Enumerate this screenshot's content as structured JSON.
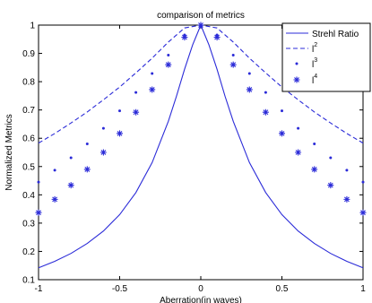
{
  "chart_data": {
    "type": "line",
    "title": "comparison of metrics",
    "xlabel": "Aberration(in waves)",
    "ylabel": "Normalized Metrics",
    "xlim": [
      -1,
      1
    ],
    "ylim": [
      0.1,
      1
    ],
    "xticks": [
      {
        "value": -1,
        "label": "-1"
      },
      {
        "value": -0.5,
        "label": "-0.5"
      },
      {
        "value": 0,
        "label": "0"
      },
      {
        "value": 0.5,
        "label": "0.5"
      },
      {
        "value": 1,
        "label": "1"
      }
    ],
    "yticks": [
      {
        "value": 0.1,
        "label": "0.1"
      },
      {
        "value": 0.2,
        "label": "0.2"
      },
      {
        "value": 0.3,
        "label": "0.3"
      },
      {
        "value": 0.4,
        "label": "0.4"
      },
      {
        "value": 0.5,
        "label": "0.5"
      },
      {
        "value": 0.6,
        "label": "0.6"
      },
      {
        "value": 0.7,
        "label": "0.7"
      },
      {
        "value": 0.8,
        "label": "0.8"
      },
      {
        "value": 0.9,
        "label": "0.9"
      },
      {
        "value": 1,
        "label": "1"
      }
    ],
    "grid": false,
    "legend_position": "top-right",
    "color": "#2b2bd8",
    "series": [
      {
        "name": "Strehl Ratio",
        "style": "solid-line",
        "x": [
          -1,
          -0.9,
          -0.8,
          -0.7,
          -0.6,
          -0.5,
          -0.4,
          -0.3,
          -0.2,
          -0.15,
          -0.1,
          -0.05,
          0,
          0.05,
          0.1,
          0.15,
          0.2,
          0.3,
          0.4,
          0.5,
          0.6,
          0.7,
          0.8,
          0.9,
          1
        ],
        "y": [
          0.142,
          0.165,
          0.193,
          0.228,
          0.272,
          0.33,
          0.408,
          0.514,
          0.66,
          0.748,
          0.844,
          0.93,
          1,
          0.93,
          0.844,
          0.748,
          0.66,
          0.514,
          0.408,
          0.33,
          0.272,
          0.228,
          0.193,
          0.165,
          0.142
        ]
      },
      {
        "name": "l2",
        "label_base": "l",
        "label_exponent": "2",
        "style": "dashed-line",
        "x": [
          -1,
          -0.9,
          -0.8,
          -0.7,
          -0.6,
          -0.5,
          -0.4,
          -0.3,
          -0.2,
          -0.1,
          0,
          0.1,
          0.2,
          0.3,
          0.4,
          0.5,
          0.6,
          0.7,
          0.8,
          0.9,
          1
        ],
        "y": [
          0.583,
          0.617,
          0.654,
          0.693,
          0.736,
          0.781,
          0.831,
          0.883,
          0.94,
          0.99,
          1,
          0.99,
          0.94,
          0.883,
          0.831,
          0.781,
          0.736,
          0.693,
          0.654,
          0.617,
          0.583
        ]
      },
      {
        "name": "l3",
        "label_base": "l",
        "label_exponent": "3",
        "style": "dot-markers",
        "x": [
          -1,
          -0.9,
          -0.8,
          -0.7,
          -0.6,
          -0.5,
          -0.4,
          -0.3,
          -0.2,
          -0.1,
          0,
          0.1,
          0.2,
          0.3,
          0.4,
          0.5,
          0.6,
          0.7,
          0.8,
          0.9,
          1
        ],
        "y": [
          0.445,
          0.487,
          0.531,
          0.58,
          0.635,
          0.697,
          0.762,
          0.829,
          0.894,
          0.965,
          1,
          0.965,
          0.894,
          0.829,
          0.762,
          0.697,
          0.635,
          0.58,
          0.531,
          0.487,
          0.445
        ]
      },
      {
        "name": "l4",
        "label_base": "l",
        "label_exponent": "4",
        "style": "star-markers",
        "x": [
          -1,
          -0.9,
          -0.8,
          -0.7,
          -0.6,
          -0.5,
          -0.4,
          -0.3,
          -0.2,
          -0.1,
          0,
          0.1,
          0.2,
          0.3,
          0.4,
          0.5,
          0.6,
          0.7,
          0.8,
          0.9,
          1
        ],
        "y": [
          0.337,
          0.384,
          0.434,
          0.49,
          0.55,
          0.617,
          0.692,
          0.772,
          0.86,
          0.957,
          1,
          0.957,
          0.86,
          0.772,
          0.692,
          0.617,
          0.55,
          0.49,
          0.434,
          0.384,
          0.337
        ]
      }
    ]
  }
}
